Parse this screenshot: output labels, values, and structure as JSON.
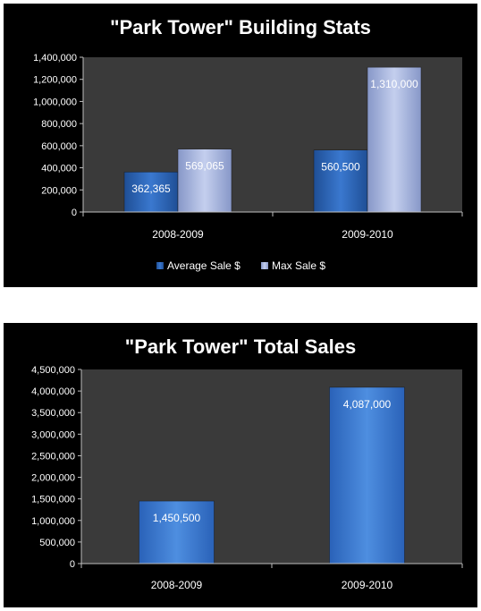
{
  "colors": {
    "background": "#000000",
    "plot_area": "#3a3a3a",
    "axis": "#bfbfbf",
    "series_dark": "#2f6cc0",
    "series_light": "#b7c4e6",
    "series_total": "#4a86d8"
  },
  "chart_data": [
    {
      "type": "bar",
      "title": "\"Park Tower\" Building Stats",
      "categories": [
        "2008-2009",
        "2009-2010"
      ],
      "series": [
        {
          "name": "Average Sale $",
          "values": [
            362365,
            560500
          ],
          "labels": [
            "362,365",
            "560,500"
          ],
          "style": "dark"
        },
        {
          "name": "Max Sale $",
          "values": [
            569065,
            1310000
          ],
          "labels": [
            "569,065",
            "1,310,000"
          ],
          "style": "light"
        }
      ],
      "ylim": [
        0,
        1400000
      ],
      "yticks": [
        0,
        200000,
        400000,
        600000,
        800000,
        1000000,
        1200000,
        1400000
      ],
      "ytick_labels": [
        "0",
        "200,000",
        "400,000",
        "600,000",
        "800,000",
        "1,000,000",
        "1,200,000",
        "1,400,000"
      ],
      "grid": false,
      "legend": "bottom"
    },
    {
      "type": "bar",
      "title": "\"Park Tower\" Total Sales",
      "categories": [
        "2008-2009",
        "2009-2010"
      ],
      "series": [
        {
          "values": [
            1450500,
            4087000
          ],
          "labels": [
            "1,450,500",
            "4,087,000"
          ],
          "style": "total"
        }
      ],
      "ylim": [
        0,
        4500000
      ],
      "yticks": [
        0,
        500000,
        1000000,
        1500000,
        2000000,
        2500000,
        3000000,
        3500000,
        4000000,
        4500000
      ],
      "ytick_labels": [
        "0",
        "500,000",
        "1,000,000",
        "1,500,000",
        "2,000,000",
        "2,500,000",
        "3,000,000",
        "3,500,000",
        "4,000,000",
        "4,500,000"
      ],
      "grid": false,
      "legend": "none"
    }
  ]
}
